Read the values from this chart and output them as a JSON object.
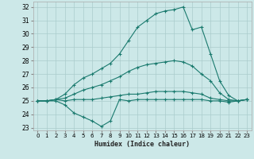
{
  "xlabel": "Humidex (Indice chaleur)",
  "background_color": "#cce8e8",
  "grid_color": "#aacccc",
  "line_color": "#1a7a6e",
  "xlim": [
    -0.5,
    23.5
  ],
  "ylim": [
    22.8,
    32.4
  ],
  "xticks": [
    0,
    1,
    2,
    3,
    4,
    5,
    6,
    7,
    8,
    9,
    10,
    11,
    12,
    13,
    14,
    15,
    16,
    17,
    18,
    19,
    20,
    21,
    22,
    23
  ],
  "yticks": [
    23,
    24,
    25,
    26,
    27,
    28,
    29,
    30,
    31,
    32
  ],
  "lines": [
    [
      25.0,
      25.0,
      25.0,
      24.7,
      24.1,
      23.8,
      23.5,
      23.1,
      23.5,
      25.1,
      25.0,
      25.1,
      25.1,
      25.1,
      25.1,
      25.1,
      25.1,
      25.1,
      25.1,
      25.0,
      25.0,
      24.9,
      25.0,
      25.1
    ],
    [
      25.0,
      25.0,
      25.1,
      25.0,
      25.1,
      25.1,
      25.1,
      25.2,
      25.3,
      25.4,
      25.5,
      25.5,
      25.6,
      25.7,
      25.7,
      25.7,
      25.7,
      25.6,
      25.5,
      25.2,
      25.1,
      25.0,
      25.0,
      25.1
    ],
    [
      25.0,
      25.0,
      25.1,
      25.2,
      25.5,
      25.8,
      26.0,
      26.2,
      26.5,
      26.8,
      27.2,
      27.5,
      27.7,
      27.8,
      27.9,
      28.0,
      27.9,
      27.6,
      27.0,
      26.5,
      25.6,
      25.1,
      25.0,
      25.1
    ],
    [
      25.0,
      25.0,
      25.1,
      25.5,
      26.2,
      26.7,
      27.0,
      27.4,
      27.8,
      28.5,
      29.5,
      30.5,
      31.0,
      31.5,
      31.7,
      31.8,
      32.0,
      30.3,
      30.5,
      28.5,
      26.5,
      25.4,
      25.0,
      25.1
    ]
  ]
}
